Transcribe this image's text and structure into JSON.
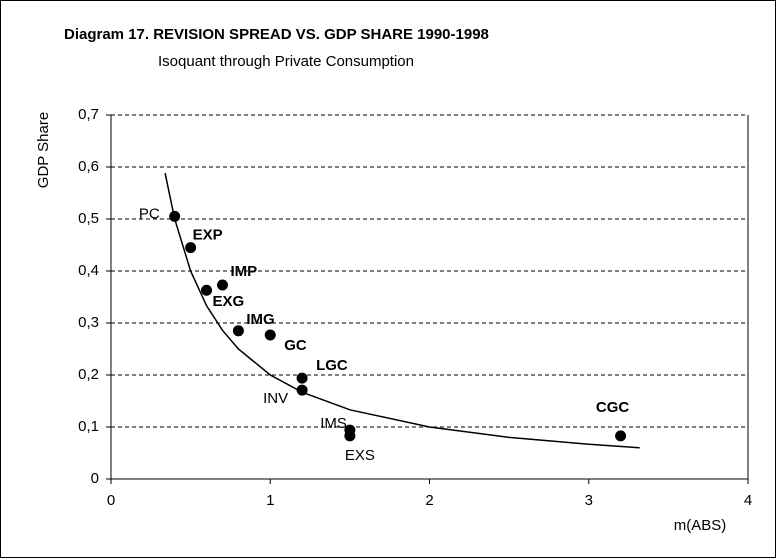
{
  "chart_data": {
    "type": "scatter",
    "title": "Diagram 17.  REVISION SPREAD VS. GDP SHARE 1990-1998",
    "subtitle": "Isoquant through Private Consumption",
    "x_label": "m(ABS)",
    "y_label": "GDP Share",
    "xlim": [
      0,
      4
    ],
    "ylim": [
      0,
      0.7
    ],
    "xticks": [
      0,
      1,
      2,
      3,
      4
    ],
    "yticks": [
      0,
      {
        "value": 0.1,
        "label": "0,1"
      },
      {
        "value": 0.2,
        "label": "0,2"
      },
      {
        "value": 0.3,
        "label": "0,3"
      },
      {
        "value": 0.4,
        "label": "0,4"
      },
      {
        "value": 0.5,
        "label": "0,5"
      },
      {
        "value": 0.6,
        "label": "0,6"
      },
      {
        "value": 0.7,
        "label": "0,7"
      }
    ],
    "grid": true,
    "points": {
      "color": "#000000",
      "labels": [
        "PC",
        "EXP",
        "IMP",
        "EXG",
        "IMG",
        "GC",
        "LGC",
        "INV",
        "IMS",
        "EXS",
        "CGC"
      ],
      "bold": [
        false,
        true,
        true,
        true,
        true,
        true,
        true,
        false,
        false,
        false,
        true
      ],
      "x": [
        0.4,
        0.5,
        0.7,
        0.6,
        0.8,
        1.0,
        1.2,
        1.2,
        1.5,
        1.5,
        3.2
      ],
      "y": [
        0.505,
        0.445,
        0.373,
        0.363,
        0.285,
        0.277,
        0.194,
        0.171,
        0.094,
        0.083,
        0.083
      ]
    },
    "curve": {
      "color": "#000000",
      "x": [
        0.34,
        0.4,
        0.5,
        0.6,
        0.7,
        0.8,
        1.0,
        1.2,
        1.5,
        2.0,
        2.5,
        3.0,
        3.32
      ],
      "y": [
        0.588,
        0.5,
        0.4,
        0.333,
        0.286,
        0.25,
        0.2,
        0.167,
        0.133,
        0.1,
        0.08,
        0.067,
        0.06
      ]
    }
  }
}
